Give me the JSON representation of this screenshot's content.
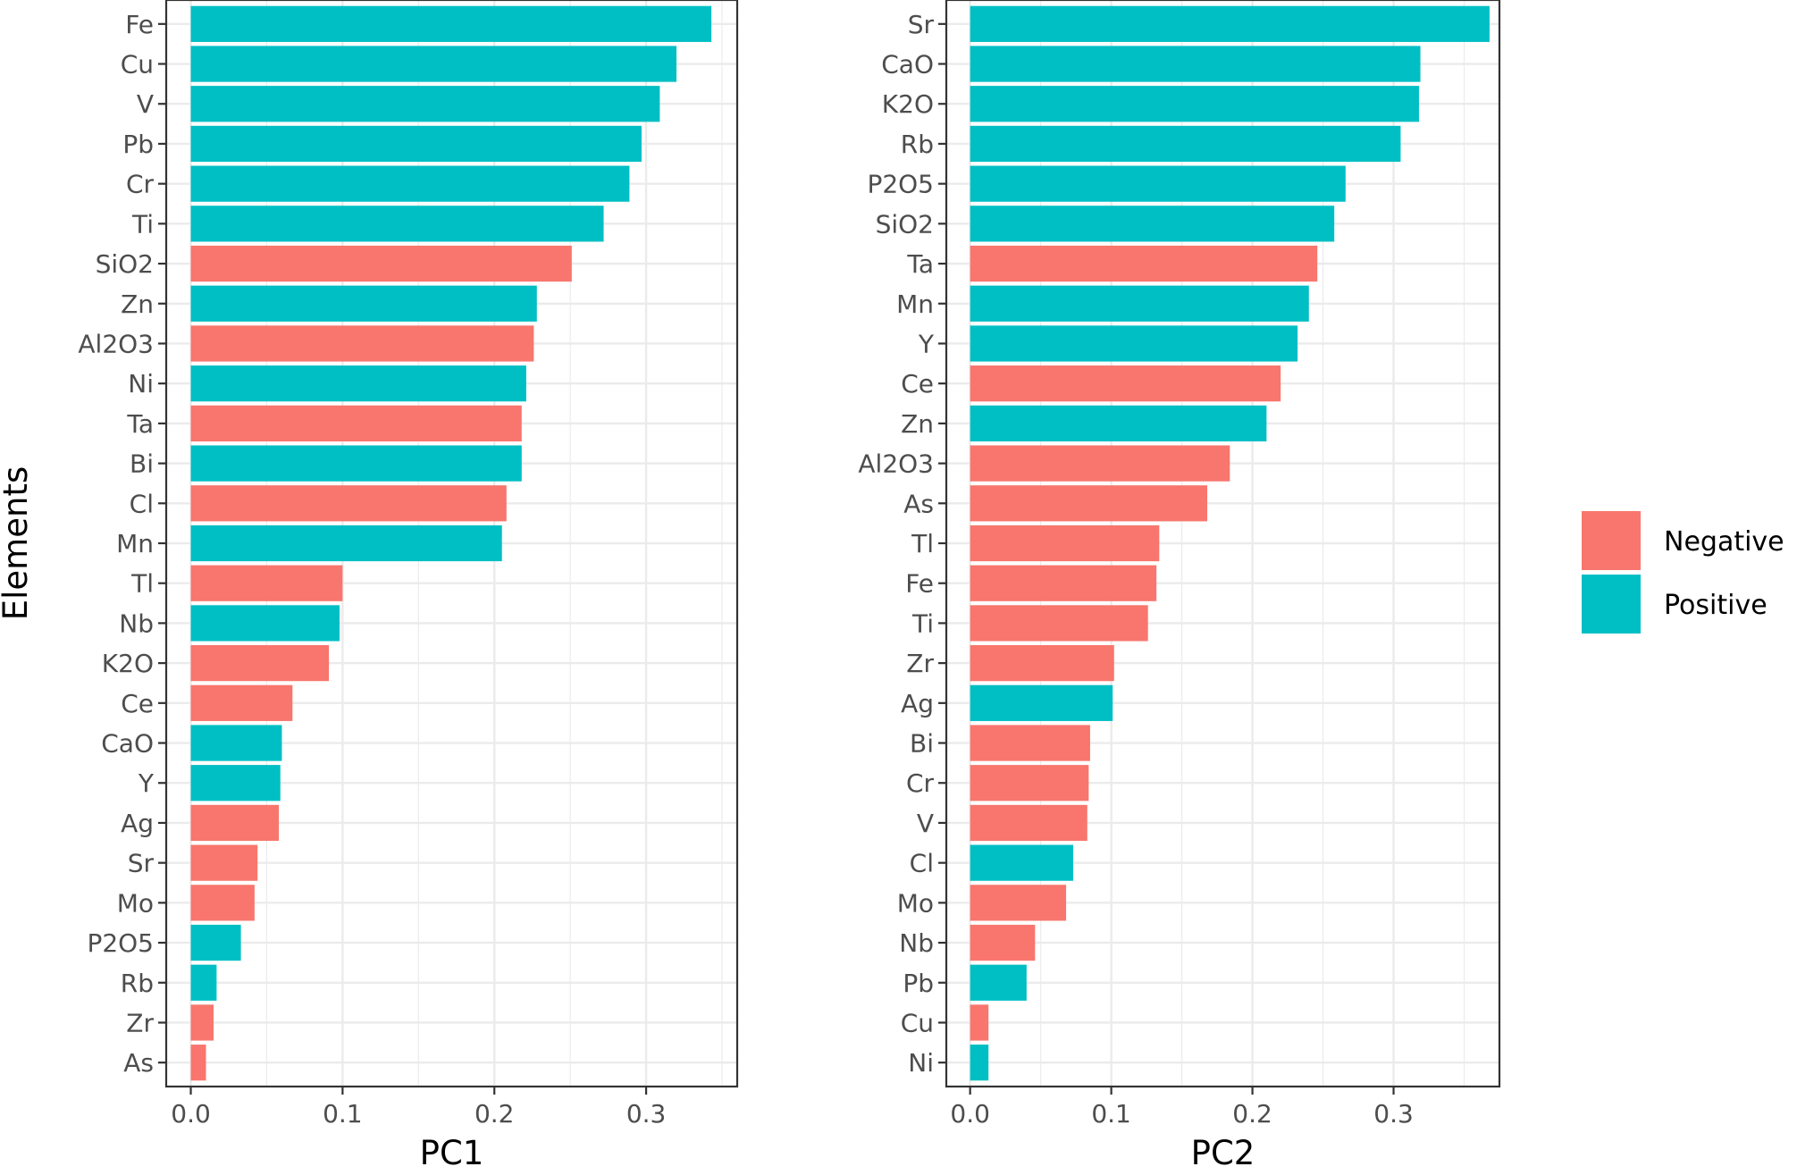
{
  "y_axis_title": "Elements",
  "legend": {
    "items": [
      {
        "label": "Negative",
        "color": "#F8766D"
      },
      {
        "label": "Positive",
        "color": "#00BFC4"
      }
    ]
  },
  "chart_data": [
    {
      "type": "bar",
      "orientation": "horizontal",
      "xlabel": "PC1",
      "ylabel": "Elements",
      "xlim": [
        0,
        0.36
      ],
      "xticks": [
        0.0,
        0.1,
        0.2,
        0.3
      ],
      "xtick_labels": [
        "0.0",
        "0.1",
        "0.2",
        "0.3"
      ],
      "grid": true,
      "legend_position": "right",
      "categories": [
        "Fe",
        "Cu",
        "V",
        "Pb",
        "Cr",
        "Ti",
        "SiO2",
        "Zn",
        "Al2O3",
        "Ni",
        "Ta",
        "Bi",
        "Cl",
        "Mn",
        "Tl",
        "Nb",
        "K2O",
        "Ce",
        "CaO",
        "Y",
        "Ag",
        "Sr",
        "Mo",
        "P2O5",
        "Rb",
        "Zr",
        "As"
      ],
      "values": [
        0.343,
        0.32,
        0.309,
        0.297,
        0.289,
        0.272,
        0.251,
        0.228,
        0.226,
        0.221,
        0.218,
        0.218,
        0.208,
        0.205,
        0.1,
        0.098,
        0.091,
        0.067,
        0.06,
        0.059,
        0.058,
        0.044,
        0.042,
        0.033,
        0.017,
        0.015,
        0.01
      ],
      "sign": [
        "Positive",
        "Positive",
        "Positive",
        "Positive",
        "Positive",
        "Positive",
        "Negative",
        "Positive",
        "Negative",
        "Positive",
        "Negative",
        "Positive",
        "Negative",
        "Positive",
        "Negative",
        "Positive",
        "Negative",
        "Negative",
        "Positive",
        "Positive",
        "Negative",
        "Negative",
        "Negative",
        "Positive",
        "Positive",
        "Negative",
        "Negative"
      ]
    },
    {
      "type": "bar",
      "orientation": "horizontal",
      "xlabel": "PC2",
      "ylabel": "",
      "xlim": [
        0,
        0.375
      ],
      "xticks": [
        0.0,
        0.1,
        0.2,
        0.3
      ],
      "xtick_labels": [
        "0.0",
        "0.1",
        "0.2",
        "0.3"
      ],
      "grid": true,
      "legend_position": "right",
      "categories": [
        "Sr",
        "CaO",
        "K2O",
        "Rb",
        "P2O5",
        "SiO2",
        "Ta",
        "Mn",
        "Y",
        "Ce",
        "Zn",
        "Al2O3",
        "As",
        "Tl",
        "Fe",
        "Ti",
        "Zr",
        "Ag",
        "Bi",
        "Cr",
        "V",
        "Cl",
        "Mo",
        "Nb",
        "Pb",
        "Cu",
        "Ni"
      ],
      "values": [
        0.368,
        0.319,
        0.318,
        0.305,
        0.266,
        0.258,
        0.246,
        0.24,
        0.232,
        0.22,
        0.21,
        0.184,
        0.168,
        0.134,
        0.132,
        0.126,
        0.102,
        0.101,
        0.085,
        0.084,
        0.083,
        0.073,
        0.068,
        0.046,
        0.04,
        0.013,
        0.013
      ],
      "sign": [
        "Positive",
        "Positive",
        "Positive",
        "Positive",
        "Positive",
        "Positive",
        "Negative",
        "Positive",
        "Positive",
        "Negative",
        "Positive",
        "Negative",
        "Negative",
        "Negative",
        "Negative",
        "Negative",
        "Negative",
        "Positive",
        "Negative",
        "Negative",
        "Negative",
        "Positive",
        "Negative",
        "Negative",
        "Positive",
        "Negative",
        "Positive"
      ]
    }
  ]
}
